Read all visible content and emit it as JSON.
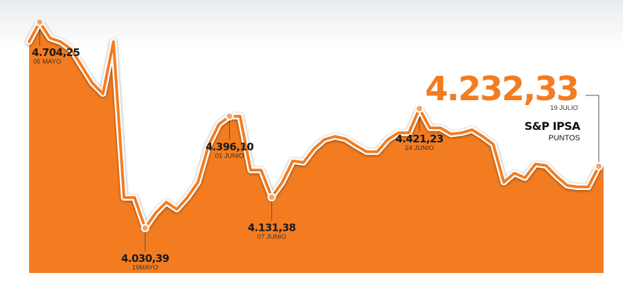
{
  "colors": {
    "accent": "#F47C20",
    "area": "#F47C20",
    "line_outline": "#FFFFFF",
    "marker_fill": "#F8A366",
    "text": "#1A1A1A",
    "leader": "#555555"
  },
  "header": {
    "index_name": "S&P IPSA",
    "unit": "PUNTOS",
    "last_value": "4.232,33",
    "last_date": "19 JULIO"
  },
  "chart_data": {
    "type": "area",
    "title": "S&P IPSA",
    "ylabel": "PUNTOS",
    "xlabel": "",
    "grid": false,
    "ylim": [
      3700,
      4900
    ],
    "series": [
      {
        "values": [
          4640,
          4704.25,
          4652,
          4640,
          4615,
          4560,
          4505,
          4470,
          4640,
          4130,
          4130,
          4030.39,
          4080,
          4115,
          4092,
          4130,
          4180,
          4300,
          4370,
          4396.1,
          4396.1,
          4220,
          4220,
          4131.38,
          4180,
          4250,
          4245,
          4290,
          4320,
          4330,
          4322,
          4300,
          4280,
          4280,
          4320,
          4342,
          4342,
          4421.23,
          4358,
          4358,
          4338,
          4342,
          4352,
          4330,
          4305,
          4180,
          4210,
          4195,
          4240,
          4235,
          4200,
          4170,
          4165,
          4165,
          4232.33
        ]
      }
    ],
    "annotations": [
      {
        "label": "4.704,25",
        "date": "05 MAYO",
        "index": 1,
        "placement": "below"
      },
      {
        "label": "4.030,39",
        "date": "19MAYO",
        "index": 11,
        "placement": "below"
      },
      {
        "label": "4.396,10",
        "date": "01 JUNIO",
        "index": 19,
        "placement": "below"
      },
      {
        "label": "4.131,38",
        "date": "07 JUNIO",
        "index": 23,
        "placement": "below"
      },
      {
        "label": "4.421,23",
        "date": "24 JUNIO",
        "index": 37,
        "placement": "below"
      },
      {
        "label": "4.232,33",
        "date": "19 JULIO",
        "index": 54,
        "placement": "top-right"
      }
    ]
  }
}
